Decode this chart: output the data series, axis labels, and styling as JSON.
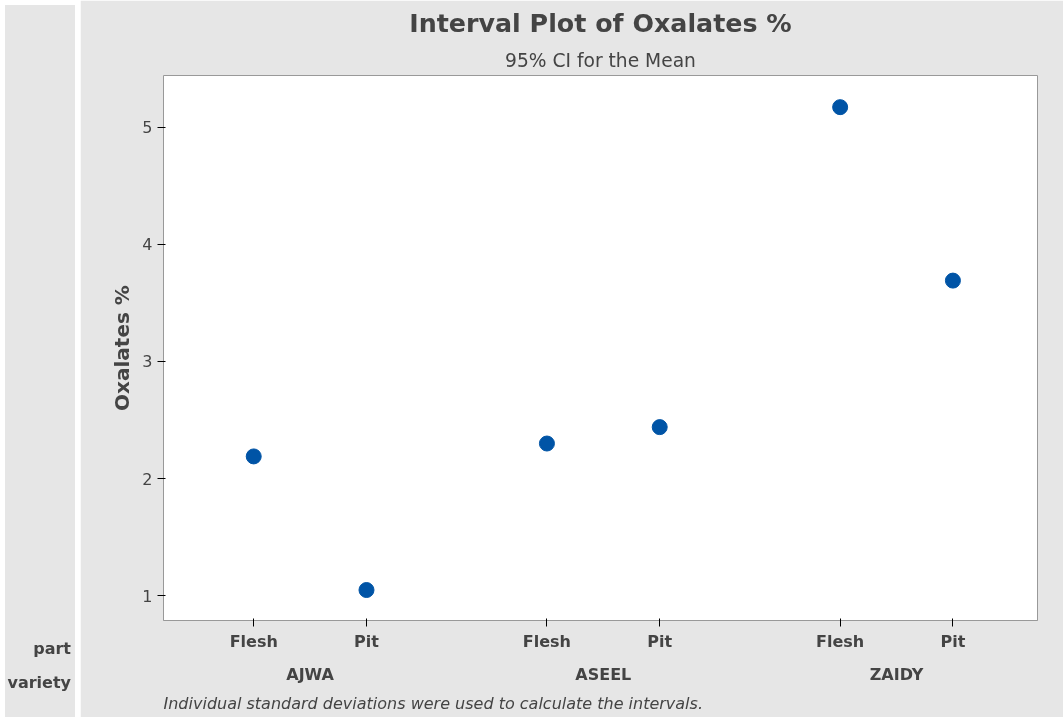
{
  "chart_data": {
    "type": "scatter",
    "title": "Interval Plot of Oxalates %",
    "subtitle": "95% CI for the Mean",
    "ylabel": "Oxalates %",
    "categories": [
      "Flesh",
      "Pit",
      "Flesh",
      "Pit",
      "Flesh",
      "Pit"
    ],
    "values": [
      2.19,
      1.05,
      2.3,
      2.44,
      5.17,
      3.69
    ],
    "color": "#0054a6",
    "marker": "circle",
    "ylim": [
      0.79,
      5.44
    ],
    "yticks": [
      1,
      2,
      3,
      4,
      5
    ],
    "grid": false,
    "annotations": [
      "part",
      "variety",
      "AJWA",
      "ASEEL",
      "ZAIDY",
      "Individual standard deviations were used to calculate the intervals."
    ]
  }
}
